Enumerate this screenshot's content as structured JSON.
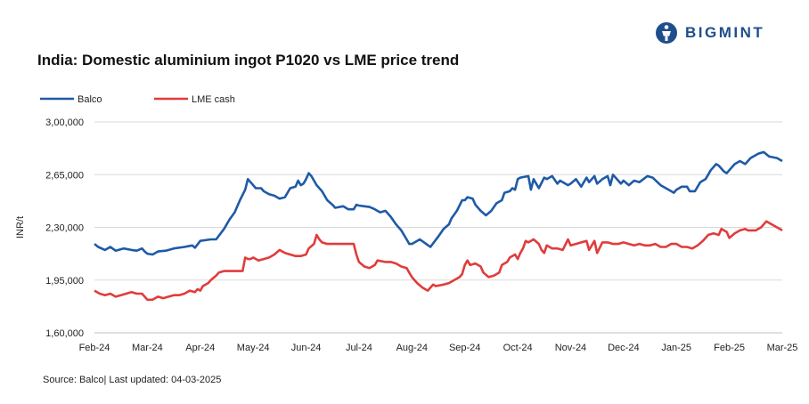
{
  "title": "India: Domestic aluminium ingot P1020 vs LME price trend",
  "logo": {
    "text": "BIGMINT"
  },
  "source": "Source: Balco| Last updated: 04-03-2025",
  "colors": {
    "balco": "#1f5aa6",
    "lme": "#e03c3c",
    "logo": "#1f4e8c"
  },
  "chart_data": {
    "type": "line",
    "ylabel": "INR/t",
    "ylim": [
      160000,
      300000
    ],
    "y_ticks": [
      160000,
      195000,
      230000,
      265000,
      300000
    ],
    "y_tick_labels": [
      "1,60,000",
      "1,95,000",
      "2,30,000",
      "2,65,000",
      "3,00,000"
    ],
    "x_tick_labels": [
      "Feb-24",
      "Mar-24",
      "Apr-24",
      "May-24",
      "Jun-24",
      "Jul-24",
      "Aug-24",
      "Sep-24",
      "Oct-24",
      "Nov-24",
      "Dec-24",
      "Jan-25",
      "Feb-25",
      "Mar-25"
    ],
    "grid": "horizontal",
    "legend": "top-left",
    "series": [
      {
        "name": "Balco",
        "points": [
          [
            0,
            219000
          ],
          [
            0.07,
            217000
          ],
          [
            0.2,
            215000
          ],
          [
            0.3,
            217000
          ],
          [
            0.4,
            214500
          ],
          [
            0.55,
            216000
          ],
          [
            0.7,
            215000
          ],
          [
            0.8,
            214500
          ],
          [
            0.9,
            216000
          ],
          [
            0.95,
            214000
          ],
          [
            1.0,
            212500
          ],
          [
            1.1,
            212000
          ],
          [
            1.2,
            214000
          ],
          [
            1.35,
            214500
          ],
          [
            1.5,
            216000
          ],
          [
            1.7,
            217000
          ],
          [
            1.85,
            218000
          ],
          [
            1.9,
            216500
          ],
          [
            2.0,
            221000
          ],
          [
            2.2,
            222000
          ],
          [
            2.3,
            222000
          ],
          [
            2.45,
            229000
          ],
          [
            2.55,
            235000
          ],
          [
            2.65,
            240000
          ],
          [
            2.75,
            248000
          ],
          [
            2.85,
            255000
          ],
          [
            2.9,
            262000
          ],
          [
            3.0,
            258000
          ],
          [
            3.05,
            256000
          ],
          [
            3.15,
            256000
          ],
          [
            3.2,
            254000
          ],
          [
            3.3,
            252000
          ],
          [
            3.4,
            251000
          ],
          [
            3.5,
            249000
          ],
          [
            3.6,
            250000
          ],
          [
            3.7,
            256000
          ],
          [
            3.8,
            257000
          ],
          [
            3.85,
            261000
          ],
          [
            3.9,
            258000
          ],
          [
            3.95,
            259000
          ],
          [
            4.0,
            262000
          ],
          [
            4.05,
            266000
          ],
          [
            4.1,
            264000
          ],
          [
            4.2,
            258000
          ],
          [
            4.3,
            254000
          ],
          [
            4.4,
            248000
          ],
          [
            4.5,
            245000
          ],
          [
            4.55,
            243000
          ],
          [
            4.7,
            244000
          ],
          [
            4.8,
            242000
          ],
          [
            4.9,
            242000
          ],
          [
            4.95,
            245000
          ],
          [
            5.0,
            244500
          ],
          [
            5.1,
            244000
          ],
          [
            5.2,
            243500
          ],
          [
            5.3,
            242000
          ],
          [
            5.4,
            240000
          ],
          [
            5.5,
            241000
          ],
          [
            5.6,
            237000
          ],
          [
            5.7,
            232000
          ],
          [
            5.8,
            228000
          ],
          [
            5.9,
            222000
          ],
          [
            5.95,
            219000
          ],
          [
            6.0,
            219000
          ],
          [
            6.1,
            221000
          ],
          [
            6.15,
            222000
          ],
          [
            6.25,
            219500
          ],
          [
            6.35,
            217000
          ],
          [
            6.5,
            224000
          ],
          [
            6.6,
            229000
          ],
          [
            6.7,
            232000
          ],
          [
            6.75,
            236000
          ],
          [
            6.85,
            241000
          ],
          [
            6.95,
            248000
          ],
          [
            7.0,
            248000
          ],
          [
            7.05,
            250000
          ],
          [
            7.15,
            249000
          ],
          [
            7.2,
            245000
          ],
          [
            7.3,
            241000
          ],
          [
            7.4,
            238000
          ],
          [
            7.5,
            241000
          ],
          [
            7.6,
            246000
          ],
          [
            7.7,
            248000
          ],
          [
            7.75,
            253000
          ],
          [
            7.85,
            254000
          ],
          [
            7.9,
            256000
          ],
          [
            7.95,
            255000
          ],
          [
            8.0,
            262000
          ],
          [
            8.05,
            263000
          ],
          [
            8.2,
            264000
          ],
          [
            8.25,
            255000
          ],
          [
            8.3,
            262000
          ],
          [
            8.4,
            256000
          ],
          [
            8.5,
            263000
          ],
          [
            8.55,
            262000
          ],
          [
            8.65,
            264000
          ],
          [
            8.75,
            259000
          ],
          [
            8.8,
            261000
          ],
          [
            8.9,
            259000
          ],
          [
            8.95,
            258000
          ],
          [
            9.0,
            259000
          ],
          [
            9.1,
            262000
          ],
          [
            9.2,
            257000
          ],
          [
            9.3,
            263000
          ],
          [
            9.35,
            260000
          ],
          [
            9.45,
            264000
          ],
          [
            9.5,
            259000
          ],
          [
            9.6,
            262000
          ],
          [
            9.7,
            264000
          ],
          [
            9.75,
            258000
          ],
          [
            9.8,
            265000
          ],
          [
            9.9,
            261000
          ],
          [
            9.95,
            259000
          ],
          [
            10.0,
            261000
          ],
          [
            10.1,
            258000
          ],
          [
            10.2,
            261000
          ],
          [
            10.3,
            260000
          ],
          [
            10.45,
            264000
          ],
          [
            10.55,
            263000
          ],
          [
            10.7,
            258000
          ],
          [
            10.8,
            256000
          ],
          [
            10.9,
            254000
          ],
          [
            10.95,
            253000
          ],
          [
            11.0,
            255000
          ],
          [
            11.1,
            257000
          ],
          [
            11.2,
            257000
          ],
          [
            11.25,
            254000
          ],
          [
            11.35,
            254000
          ],
          [
            11.45,
            260000
          ],
          [
            11.55,
            262000
          ],
          [
            11.65,
            268000
          ],
          [
            11.75,
            272000
          ],
          [
            11.8,
            271000
          ],
          [
            11.9,
            267000
          ],
          [
            11.95,
            266000
          ],
          [
            12.0,
            268000
          ],
          [
            12.1,
            272000
          ],
          [
            12.2,
            274000
          ],
          [
            12.3,
            272000
          ],
          [
            12.4,
            276000
          ],
          [
            12.55,
            279000
          ],
          [
            12.65,
            280000
          ],
          [
            12.75,
            277000
          ],
          [
            12.9,
            276000
          ],
          [
            13.0,
            274000
          ]
        ]
      },
      {
        "name": "LME cash",
        "points": [
          [
            0,
            188000
          ],
          [
            0.1,
            186000
          ],
          [
            0.2,
            185000
          ],
          [
            0.3,
            186000
          ],
          [
            0.4,
            184000
          ],
          [
            0.5,
            185000
          ],
          [
            0.6,
            186000
          ],
          [
            0.7,
            187000
          ],
          [
            0.8,
            186000
          ],
          [
            0.9,
            186000
          ],
          [
            0.95,
            184000
          ],
          [
            1.0,
            182000
          ],
          [
            1.1,
            182000
          ],
          [
            1.2,
            184000
          ],
          [
            1.3,
            183000
          ],
          [
            1.4,
            184000
          ],
          [
            1.5,
            185000
          ],
          [
            1.6,
            185000
          ],
          [
            1.7,
            186000
          ],
          [
            1.8,
            188000
          ],
          [
            1.9,
            187000
          ],
          [
            1.95,
            189000
          ],
          [
            2.0,
            188000
          ],
          [
            2.05,
            191000
          ],
          [
            2.15,
            193000
          ],
          [
            2.2,
            195000
          ],
          [
            2.3,
            198000
          ],
          [
            2.35,
            200000
          ],
          [
            2.45,
            201000
          ],
          [
            2.6,
            201000
          ],
          [
            2.7,
            201000
          ],
          [
            2.8,
            201000
          ],
          [
            2.85,
            210000
          ],
          [
            2.9,
            209000
          ],
          [
            2.95,
            209000
          ],
          [
            3.0,
            210000
          ],
          [
            3.1,
            208000
          ],
          [
            3.2,
            209000
          ],
          [
            3.3,
            210000
          ],
          [
            3.4,
            212000
          ],
          [
            3.5,
            215000
          ],
          [
            3.6,
            213000
          ],
          [
            3.7,
            212000
          ],
          [
            3.8,
            211000
          ],
          [
            3.9,
            211000
          ],
          [
            4.0,
            212000
          ],
          [
            4.05,
            216000
          ],
          [
            4.15,
            219000
          ],
          [
            4.2,
            225000
          ],
          [
            4.25,
            222000
          ],
          [
            4.3,
            220000
          ],
          [
            4.4,
            219000
          ],
          [
            4.5,
            219000
          ],
          [
            4.7,
            219000
          ],
          [
            4.9,
            219000
          ],
          [
            4.95,
            212000
          ],
          [
            5.0,
            207000
          ],
          [
            5.1,
            204000
          ],
          [
            5.2,
            203000
          ],
          [
            5.3,
            205000
          ],
          [
            5.35,
            208000
          ],
          [
            5.5,
            207000
          ],
          [
            5.6,
            207000
          ],
          [
            5.7,
            206000
          ],
          [
            5.8,
            204000
          ],
          [
            5.9,
            203000
          ],
          [
            5.95,
            200000
          ],
          [
            6.0,
            197000
          ],
          [
            6.1,
            193000
          ],
          [
            6.2,
            190000
          ],
          [
            6.3,
            188000
          ],
          [
            6.4,
            192000
          ],
          [
            6.45,
            191000
          ],
          [
            6.6,
            192000
          ],
          [
            6.7,
            193000
          ],
          [
            6.8,
            195000
          ],
          [
            6.9,
            197000
          ],
          [
            6.95,
            199000
          ],
          [
            7.0,
            205000
          ],
          [
            7.05,
            208000
          ],
          [
            7.1,
            205000
          ],
          [
            7.2,
            206000
          ],
          [
            7.3,
            204000
          ],
          [
            7.35,
            200000
          ],
          [
            7.45,
            197000
          ],
          [
            7.55,
            198000
          ],
          [
            7.65,
            200000
          ],
          [
            7.7,
            205000
          ],
          [
            7.8,
            207000
          ],
          [
            7.85,
            210000
          ],
          [
            7.95,
            212000
          ],
          [
            8.0,
            209000
          ],
          [
            8.05,
            213000
          ],
          [
            8.1,
            216000
          ],
          [
            8.15,
            221000
          ],
          [
            8.2,
            220000
          ],
          [
            8.3,
            222000
          ],
          [
            8.4,
            219000
          ],
          [
            8.45,
            215000
          ],
          [
            8.5,
            213000
          ],
          [
            8.55,
            218000
          ],
          [
            8.65,
            216000
          ],
          [
            8.75,
            216000
          ],
          [
            8.85,
            215000
          ],
          [
            8.95,
            222000
          ],
          [
            9.0,
            218000
          ],
          [
            9.1,
            219000
          ],
          [
            9.2,
            220000
          ],
          [
            9.3,
            221000
          ],
          [
            9.35,
            215000
          ],
          [
            9.45,
            221000
          ],
          [
            9.5,
            213000
          ],
          [
            9.6,
            220000
          ],
          [
            9.7,
            220000
          ],
          [
            9.8,
            219000
          ],
          [
            9.9,
            219000
          ],
          [
            10.0,
            220000
          ],
          [
            10.1,
            219000
          ],
          [
            10.2,
            218000
          ],
          [
            10.3,
            219000
          ],
          [
            10.4,
            218000
          ],
          [
            10.5,
            218000
          ],
          [
            10.6,
            219000
          ],
          [
            10.7,
            217000
          ],
          [
            10.8,
            217000
          ],
          [
            10.9,
            219000
          ],
          [
            11.0,
            219000
          ],
          [
            11.1,
            217000
          ],
          [
            11.2,
            217000
          ],
          [
            11.3,
            216000
          ],
          [
            11.4,
            218000
          ],
          [
            11.5,
            221000
          ],
          [
            11.6,
            225000
          ],
          [
            11.7,
            226000
          ],
          [
            11.8,
            225000
          ],
          [
            11.85,
            229000
          ],
          [
            11.95,
            227000
          ],
          [
            12.0,
            223000
          ],
          [
            12.1,
            226000
          ],
          [
            12.2,
            228000
          ],
          [
            12.3,
            229000
          ],
          [
            12.35,
            228000
          ],
          [
            12.5,
            228000
          ],
          [
            12.6,
            230000
          ],
          [
            12.7,
            234000
          ],
          [
            12.8,
            232000
          ],
          [
            12.9,
            230000
          ],
          [
            13.0,
            228000
          ]
        ]
      }
    ]
  }
}
